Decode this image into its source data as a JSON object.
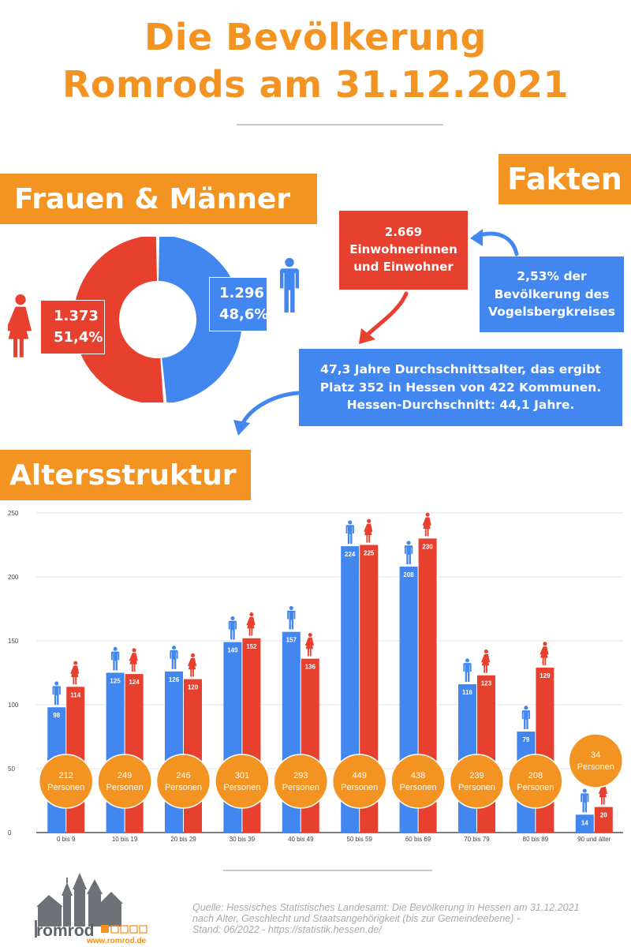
{
  "title": {
    "line1": "Die Bevölkerung",
    "line2": "Romrods am 31.12.2021"
  },
  "sections": {
    "gender": "Frauen & Männer",
    "facts": "Fakten",
    "age": "Altersstruktur"
  },
  "donut": {
    "women": {
      "count": "1.373",
      "percent": "51,4%",
      "share": 51.4,
      "color": "#e8402e",
      "icon": "woman-icon"
    },
    "men": {
      "count": "1.296",
      "percent": "48,6%",
      "share": 48.6,
      "color": "#4286ef",
      "icon": "man-icon"
    }
  },
  "facts": {
    "total": [
      "2.669",
      "Einwohnerinnen",
      "und Einwohner"
    ],
    "share": [
      "2,53% der",
      "Bevölkerung des",
      "Vogelsbergkreises"
    ],
    "age": [
      "47,3 Jahre Durchschnittsalter, das ergibt",
      "Platz 352 in Hessen von 422 Kommunen.",
      "Hessen-Durchschnitt: 44,1 Jahre."
    ]
  },
  "colors": {
    "accent": "#f39322",
    "men": "#4286ef",
    "women": "#e8402e",
    "axis_text": "#444444",
    "grid": "#d9d9d9"
  },
  "chart_data": {
    "type": "bar",
    "title": "",
    "xlabel": "",
    "ylabel": "",
    "ylim": [
      0,
      250
    ],
    "yticks": [
      0,
      50,
      100,
      150,
      200,
      250
    ],
    "grid": true,
    "categories": [
      "0 bis 9",
      "10 bis 19",
      "20 bis 29",
      "30 bis 39",
      "40 bis 49",
      "50 bis 59",
      "60 bis 69",
      "70 bis 79",
      "80 bis 89",
      "90 und älter"
    ],
    "series": [
      {
        "icon": "man-icon",
        "color": "#4286ef",
        "values": [
          98,
          125,
          126,
          149,
          157,
          224,
          208,
          116,
          79,
          14
        ]
      },
      {
        "icon": "woman-icon",
        "color": "#e8402e",
        "values": [
          114,
          124,
          120,
          152,
          136,
          225,
          230,
          123,
          129,
          20
        ]
      }
    ],
    "totals": [
      212,
      249,
      246,
      301,
      293,
      449,
      438,
      239,
      208,
      34
    ],
    "totals_unit": "Personen"
  },
  "source": [
    "Quelle: Hessisches Statistisches Landesamt: Die Bevölkerung in Hessen am 31.12.2021",
    "nach Alter, Geschlecht und Staatsangehörigkeit (bis zur Gemeindeebene) -",
    "Stand: 06/2022 - https://statistik.hessen.de/"
  ],
  "logo": {
    "word": "romrod",
    "url": "www.romrod.de"
  }
}
